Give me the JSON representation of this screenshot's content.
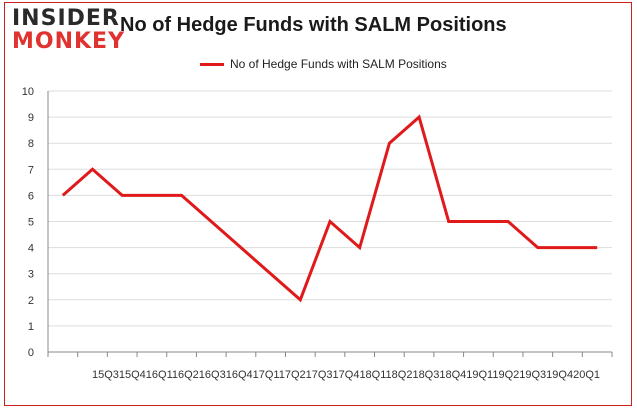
{
  "logo": {
    "line1": "INSIDER",
    "line2": "MONKEY"
  },
  "chart_data": {
    "type": "line",
    "title": "No of Hedge Funds with SALM Positions",
    "xlabel": "",
    "ylabel": "",
    "categories": [
      "15Q3",
      "15Q4",
      "16Q1",
      "16Q2",
      "16Q3",
      "16Q4",
      "17Q1",
      "17Q2",
      "17Q3",
      "17Q4",
      "18Q1",
      "18Q2",
      "18Q3",
      "18Q4",
      "19Q1",
      "19Q2",
      "19Q3",
      "19Q4",
      "20Q1"
    ],
    "series": [
      {
        "name": "No of Hedge Funds with SALM Positions",
        "values": [
          6,
          7,
          6,
          6,
          6,
          null,
          null,
          null,
          2,
          5,
          4,
          8,
          9,
          5,
          5,
          5,
          4,
          4,
          4
        ]
      }
    ],
    "line_points": [
      {
        "x": "15Q3",
        "y": 6
      },
      {
        "x": "15Q4",
        "y": 7
      },
      {
        "x": "16Q1",
        "y": 6
      },
      {
        "x": "16Q3",
        "y": 6
      },
      {
        "x": "17Q3",
        "y": 2
      },
      {
        "x": "17Q4",
        "y": 5
      },
      {
        "x": "18Q1",
        "y": 4
      },
      {
        "x": "18Q2",
        "y": 8
      },
      {
        "x": "18Q3",
        "y": 9
      },
      {
        "x": "18Q4",
        "y": 5
      },
      {
        "x": "19Q2",
        "y": 5
      },
      {
        "x": "19Q3",
        "y": 4
      },
      {
        "x": "20Q1",
        "y": 4
      }
    ],
    "ylim": [
      0,
      10
    ],
    "yticks": [
      0,
      1,
      2,
      3,
      4,
      5,
      6,
      7,
      8,
      9,
      10
    ],
    "xtick_text": "15Q315Q416Q116Q216Q316Q417Q117Q217Q317Q418Q118Q218Q318Q419Q119Q219Q319Q420Q1",
    "grid": true,
    "legend_position": "top",
    "colors": {
      "line": "#e0191a",
      "grid": "#dddddd",
      "axis": "#888888"
    }
  }
}
